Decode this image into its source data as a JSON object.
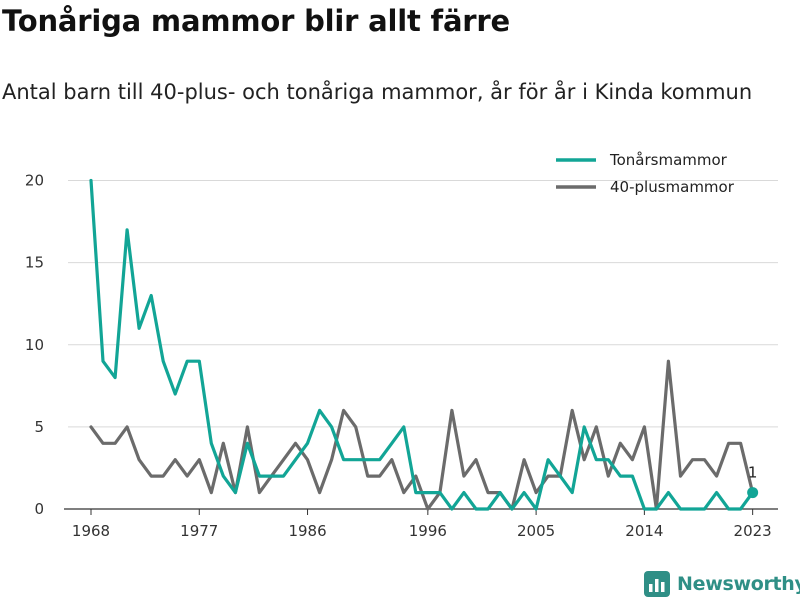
{
  "title": "Tonåriga mammor blir allt färre",
  "subtitle": "Antal barn till 40-plus- och tonåriga mammor, år för år i Kinda kommun",
  "brand": "Newsworthy",
  "colors": {
    "teen": "#12a596",
    "plus40": "#6b6b6b",
    "grid": "#d9d9d9",
    "axis": "#333333",
    "brand": "#2f8f86"
  },
  "chart_data": {
    "type": "line",
    "x": [
      1968,
      1969,
      1970,
      1971,
      1972,
      1973,
      1974,
      1975,
      1976,
      1977,
      1978,
      1979,
      1980,
      1981,
      1982,
      1983,
      1984,
      1985,
      1986,
      1987,
      1988,
      1989,
      1990,
      1991,
      1992,
      1993,
      1994,
      1995,
      1996,
      1997,
      1998,
      1999,
      2000,
      2001,
      2002,
      2003,
      2004,
      2005,
      2006,
      2007,
      2008,
      2009,
      2010,
      2011,
      2012,
      2013,
      2014,
      2015,
      2016,
      2017,
      2018,
      2019,
      2020,
      2021,
      2022,
      2023
    ],
    "series": [
      {
        "name": "Tonårsmammor",
        "color": "#12a596",
        "values": [
          20,
          9,
          8,
          17,
          11,
          13,
          9,
          7,
          9,
          9,
          4,
          2,
          1,
          4,
          2,
          2,
          2,
          3,
          4,
          6,
          5,
          3,
          3,
          3,
          3,
          4,
          5,
          1,
          1,
          1,
          0,
          1,
          0,
          0,
          1,
          0,
          1,
          0,
          3,
          2,
          1,
          5,
          3,
          3,
          2,
          2,
          0,
          0,
          1,
          0,
          0,
          0,
          1,
          0,
          0,
          1
        ]
      },
      {
        "name": "40-plusmammor",
        "color": "#6b6b6b",
        "values": [
          5,
          4,
          4,
          5,
          3,
          2,
          2,
          3,
          2,
          3,
          1,
          4,
          1,
          5,
          1,
          2,
          3,
          4,
          3,
          1,
          3,
          6,
          5,
          2,
          2,
          3,
          1,
          2,
          0,
          1,
          6,
          2,
          3,
          1,
          1,
          0,
          3,
          1,
          2,
          2,
          6,
          3,
          5,
          2,
          4,
          3,
          5,
          0,
          9,
          2,
          3,
          3,
          2,
          4,
          4,
          1
        ]
      }
    ],
    "xticks": [
      "1968",
      "1977",
      "1986",
      "1996",
      "2005",
      "2014",
      "2023"
    ],
    "yticks": [
      "0",
      "5",
      "10",
      "15",
      "20"
    ],
    "ylim": [
      0,
      21
    ],
    "xlim": [
      1968,
      2023
    ],
    "grid": true,
    "legend": "top-right",
    "annotation": {
      "series": "Tonårsmammor",
      "year": 2023,
      "label": "1"
    }
  }
}
